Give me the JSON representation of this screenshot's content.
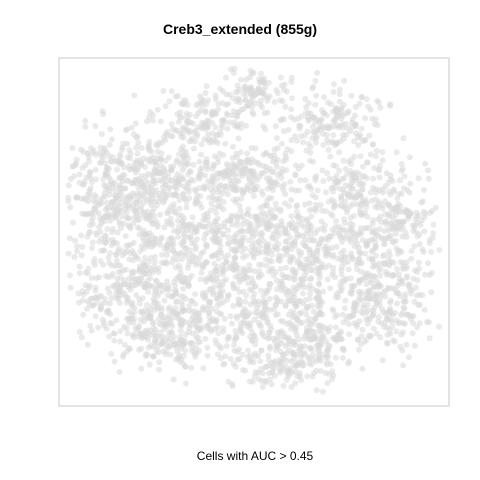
{
  "chart_data": {
    "type": "scatter",
    "title": "Creb3_extended (855g)",
    "caption": "Cells with AUC > 0.45",
    "xlabel": "",
    "ylabel": "",
    "grid": false,
    "legend": "none",
    "point_color": "#d9d9d9",
    "highlight_color": "",
    "highlighted_points": [],
    "frame_color": "#c8c8c8",
    "background_color": "#ffffff"
  }
}
